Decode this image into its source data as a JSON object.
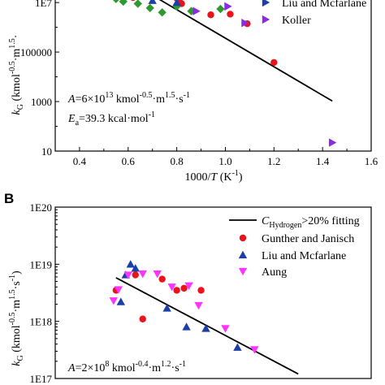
{
  "chart_data": [
    {
      "type": "scatter",
      "panel_label": "",
      "xlabel": "1000/T (K⁻¹)",
      "ylabel": "k_G (kmol⁻⁰·⁵·m¹·⁵·s⁻¹)",
      "xlim": [
        0.3,
        1.6
      ],
      "ylim_log10": [
        1,
        7.3
      ],
      "xticks": [
        "0.4",
        "0.6",
        "0.8",
        "1.0",
        "1.2",
        "1.4",
        "1.6"
      ],
      "yticks": [
        "10",
        "1000",
        "100000",
        "1E7"
      ],
      "legend": [
        "Liu and Mcfarlane",
        "Koller"
      ],
      "annotations": [
        "A=6×10¹³ kmol⁻⁰·⁵·m¹·⁵·s⁻¹",
        "Eₐ=39.3 kcal·mol⁻¹"
      ],
      "fit_line": {
        "x": [
          0.72,
          1.44
        ],
        "y": [
          15000000,
          1050
        ]
      },
      "series": [
        {
          "name": "",
          "marker": "circle",
          "color": "#e8141c",
          "x": [
            0.62,
            0.81,
            0.82,
            0.94,
            1.02,
            1.09,
            1.2,
            0.63,
            0.8
          ],
          "y": [
            16000000,
            13000000,
            9000000,
            3200000,
            3400000,
            1400000,
            38000,
            20000000,
            15000000
          ]
        },
        {
          "name": "",
          "marker": "diamond",
          "color": "#2e9a2e",
          "x": [
            0.55,
            0.58,
            0.64,
            0.69,
            0.8,
            0.86,
            0.98,
            0.74
          ],
          "y": [
            14000000,
            11000000,
            9000000,
            6000000,
            7000000,
            4500000,
            5500000,
            4000000
          ]
        },
        {
          "name": "Liu and Mcfarlane",
          "marker": "triangle-up",
          "color": "#1a3fa8",
          "x": [
            0.54,
            0.72,
            0.7,
            0.8
          ],
          "y": [
            20000000,
            20000000,
            12000000,
            10000000
          ]
        },
        {
          "name": "Koller",
          "marker": "triangle-right",
          "color": "#8a2be2",
          "x": [
            0.88,
            1.01,
            1.08,
            1.44
          ],
          "y": [
            4500000,
            7000000,
            1500000,
            22
          ]
        }
      ]
    },
    {
      "type": "scatter",
      "panel_label": "B",
      "xlabel": "",
      "ylabel": "k_G (kmol⁻⁰·⁵·m¹·⁵·s⁻¹)",
      "ylim_log10": [
        17,
        20
      ],
      "yticks": [
        "1E17",
        "1E18",
        "1E19",
        "1E20"
      ],
      "legend": [
        "C_Hydrogen>20% fitting",
        "Gunther and Janisch",
        "Liu and Mcfarlane",
        "Aung"
      ],
      "annotations": [
        "A=2×10⁸ kmol⁻⁰·⁴·m¹·²·s⁻¹"
      ],
      "series": [
        {
          "name": "Gunther and Janisch",
          "marker": "circle",
          "color": "#e8141c",
          "x": [
            0.55,
            0.63,
            0.66,
            0.74,
            0.8,
            0.83,
            0.9
          ],
          "y": [
            3.5e+18,
            6.5e+18,
            1.1e+18,
            5.5e+18,
            3.5e+18,
            3.8e+18,
            3.5e+18
          ]
        },
        {
          "name": "Liu and Mcfarlane",
          "marker": "triangle-up",
          "color": "#1a3fa8",
          "x": [
            0.57,
            0.61,
            0.63,
            0.59,
            0.76,
            0.84,
            0.92,
            1.05
          ],
          "y": [
            2.2e+18,
            1e+19,
            8.5e+18,
            6.5e+18,
            1.7e+18,
            8e+17,
            7.5e+17,
            3.5e+17
          ]
        },
        {
          "name": "Aung",
          "marker": "triangle-down",
          "color": "#ff33ff",
          "x": [
            0.54,
            0.56,
            0.6,
            0.66,
            0.72,
            0.78,
            0.85,
            0.89,
            1.0,
            1.12
          ],
          "y": [
            2.3e+18,
            3.6e+18,
            6.5e+18,
            6.8e+18,
            6.8e+18,
            4e+18,
            4.2e+18,
            1.9e+18,
            7.5e+17,
            3.2e+17
          ]
        }
      ],
      "fit_line": {
        "x": [
          0.55,
          1.3
        ],
        "y": [
          5.8e+18,
          1.2e+17
        ]
      }
    }
  ]
}
